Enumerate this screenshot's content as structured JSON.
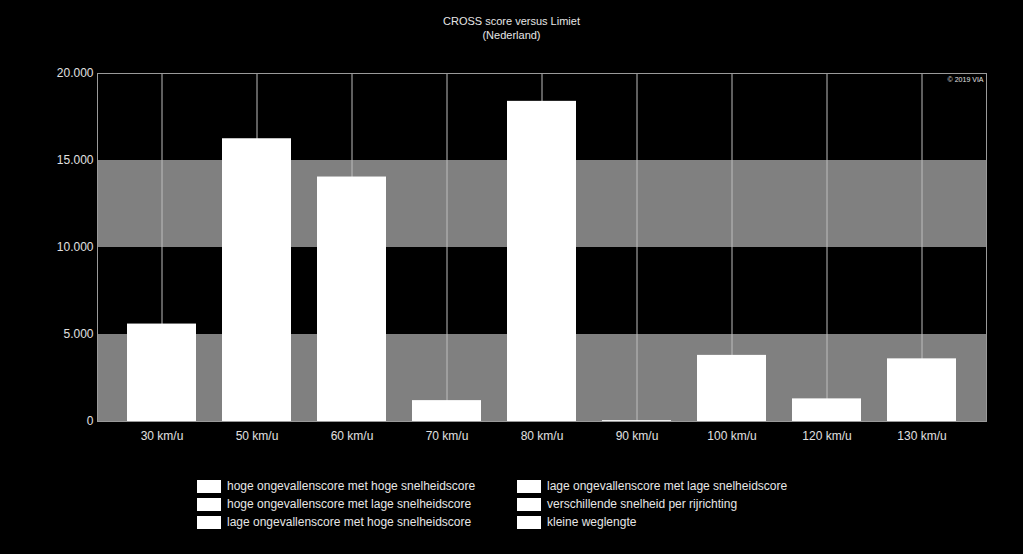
{
  "chart_data": {
    "type": "bar",
    "title": "CROSS score versus Limiet",
    "subtitle": "(Nederland)",
    "categories": [
      "30 km/u",
      "50 km/u",
      "60 km/u",
      "70 km/u",
      "80 km/u",
      "90 km/u",
      "100 km/u",
      "120 km/u",
      "130 km/u"
    ],
    "values": [
      5600,
      16250,
      14050,
      1200,
      18400,
      50,
      3800,
      1300,
      3600
    ],
    "color": "#ffffff",
    "ylim": [
      0,
      20000
    ],
    "yticks": [
      0,
      {
        "value": 5000,
        "label": "5.000"
      },
      {
        "value": 10000,
        "label": "10.000"
      },
      {
        "value": 15000,
        "label": "15.000"
      },
      {
        "value": 20000,
        "label": "20.000"
      }
    ],
    "grid": true,
    "legend": "bottom",
    "legend_items": [
      {
        "name": "hoge ongevallenscore met hoge snelheidscore",
        "color": "#ffffff"
      },
      {
        "name": "lage ongevallenscore met lage snelheidscore",
        "color": "#ffffff"
      },
      {
        "name": "hoge ongevallenscore met lage snelheidscore",
        "color": "#ffffff"
      },
      {
        "name": "verschillende snelheid per rijrichting",
        "color": "#ffffff"
      },
      {
        "name": "lage ongevallenscore met hoge snelheidscore",
        "color": "#ffffff"
      },
      {
        "name": "kleine weglengte",
        "color": "#ffffff"
      }
    ],
    "annotations": [
      "© 2019 VIA"
    ]
  }
}
